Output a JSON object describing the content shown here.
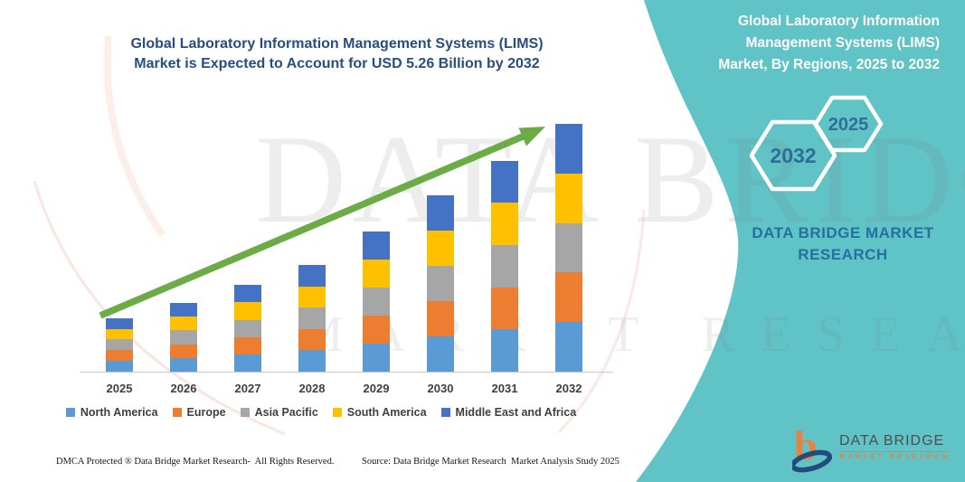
{
  "colors": {
    "teal_panel": "#60C3C6",
    "title_navy": "#264E7E",
    "arrow_green": "#6CAC47",
    "axis_gray": "#C9C9C9",
    "label_gray": "#3F3F3F",
    "brand_blue": "#2470A0",
    "hex_year_blue": "#2F6F96",
    "logo_orange": "#E8823D",
    "logo_navy": "#254A7C",
    "watermark_gray": "#7E7E7E"
  },
  "left": {
    "title_lines": [
      "Global Laboratory Information Management Systems (LIMS)",
      "Market is Expected to Account for USD 5.26 Billion by 2032"
    ]
  },
  "chart_data": {
    "type": "bar",
    "stacked": true,
    "title": "Global Laboratory Information Management Systems (LIMS) Market is Expected to Account for USD 5.26 Billion by 2032",
    "unit": "USD Billion",
    "xlabel": "",
    "ylabel": "",
    "categories": [
      "2025",
      "2026",
      "2027",
      "2028",
      "2029",
      "2030",
      "2031",
      "2032"
    ],
    "series": [
      {
        "name": "North America",
        "color": "#5B9BD5",
        "values": [
          0.228,
          0.292,
          0.368,
          0.452,
          0.596,
          0.748,
          0.896,
          1.052
        ]
      },
      {
        "name": "Europe",
        "color": "#ED7D31",
        "values": [
          0.228,
          0.292,
          0.368,
          0.452,
          0.596,
          0.748,
          0.896,
          1.052
        ]
      },
      {
        "name": "Asia Pacific",
        "color": "#A6A6A6",
        "values": [
          0.228,
          0.292,
          0.368,
          0.452,
          0.596,
          0.748,
          0.896,
          1.052
        ]
      },
      {
        "name": "South America",
        "color": "#FFC000",
        "values": [
          0.228,
          0.292,
          0.368,
          0.452,
          0.596,
          0.748,
          0.896,
          1.052
        ]
      },
      {
        "name": "Middle East and Africa",
        "color": "#4472C4",
        "values": [
          0.228,
          0.292,
          0.368,
          0.452,
          0.596,
          0.748,
          0.896,
          1.052
        ]
      }
    ],
    "totals": [
      1.14,
      1.46,
      1.84,
      2.26,
      2.98,
      3.74,
      4.48,
      5.26
    ],
    "ylim": [
      0,
      5.55
    ],
    "grid": false,
    "axis_labels_visible": false,
    "legend_position": "bottom",
    "annotations": [
      "green upward trend arrow from 2025 to 2032"
    ]
  },
  "footer": {
    "left": "DMCA Protected ® Data Bridge Market Research-  All Rights Reserved.",
    "right": "Source: Data Bridge Market Research  Market Analysis Study 2025"
  },
  "right": {
    "title_lines": [
      "Global Laboratory Information",
      "Management Systems (LIMS)",
      "Market, By Regions, 2025 to 2032"
    ],
    "hexagons": [
      {
        "label": "2032"
      },
      {
        "label": "2025"
      }
    ],
    "brand_text": "DATA BRIDGE MARKET RESEARCH"
  },
  "watermark": {
    "line1": "DATA BRIDGE",
    "line2": "MARKET RESEARCH"
  },
  "logo": {
    "name": "DATA BRIDGE",
    "subtitle": "MARKET RESEARCH"
  }
}
